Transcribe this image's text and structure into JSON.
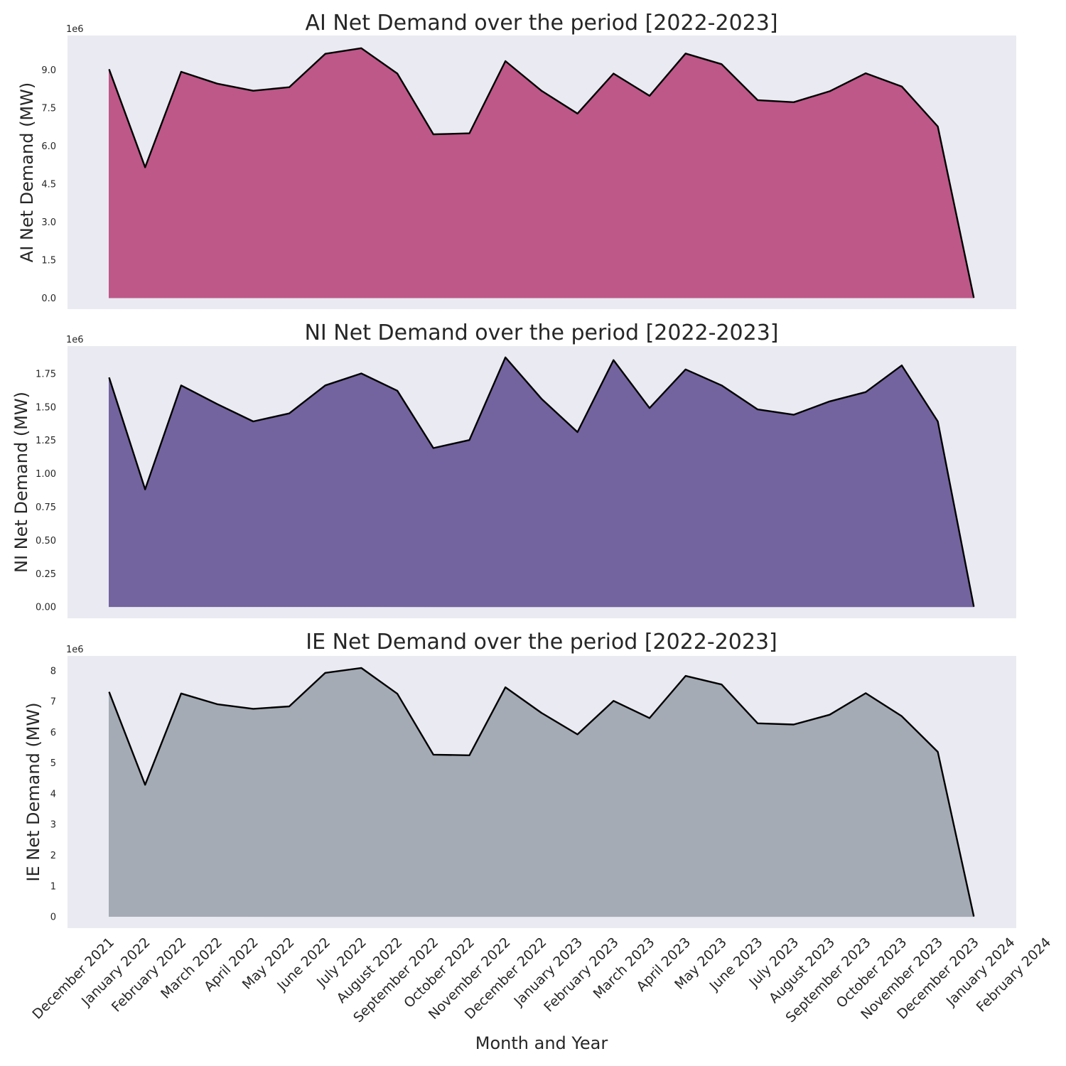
{
  "chart_data": [
    {
      "type": "area",
      "title": "AI Net Demand over the period [2022-2023]",
      "ylabel": "AI Net Demand (MW)",
      "multiplier": "1e6",
      "fill_color": "#bd5888",
      "line_color": "#000000",
      "yticks": [
        "0.0",
        "1.5",
        "3.0",
        "4.5",
        "6.0",
        "7.5",
        "9.0"
      ],
      "ylim": [
        -0.45,
        10.35
      ],
      "values": [
        9.02,
        5.15,
        8.92,
        8.45,
        8.17,
        8.31,
        9.63,
        9.85,
        8.85,
        6.45,
        6.49,
        9.34,
        8.17,
        7.27,
        8.85,
        7.97,
        9.64,
        9.22,
        7.8,
        7.72,
        8.15,
        8.86,
        8.34,
        6.76,
        0.0
      ]
    },
    {
      "type": "area",
      "title": "NI Net Demand over the period [2022-2023]",
      "ylabel": "NI Net Demand (MW)",
      "multiplier": "1e6",
      "fill_color": "#73649f",
      "line_color": "#000000",
      "yticks": [
        "0.00",
        "0.25",
        "0.50",
        "0.75",
        "1.00",
        "1.25",
        "1.50",
        "1.75"
      ],
      "ylim": [
        -0.087,
        1.955
      ],
      "values": [
        1.72,
        0.88,
        1.66,
        1.52,
        1.39,
        1.45,
        1.66,
        1.75,
        1.62,
        1.19,
        1.25,
        1.87,
        1.56,
        1.31,
        1.85,
        1.49,
        1.78,
        1.66,
        1.48,
        1.44,
        1.54,
        1.61,
        1.81,
        1.39,
        0.0
      ]
    },
    {
      "type": "area",
      "title": "IE Net Demand over the period [2022-2023]",
      "ylabel": "IE Net Demand (MW)",
      "multiplier": "1e6",
      "fill_color": "#a4abb5",
      "line_color": "#000000",
      "yticks": [
        "0",
        "1",
        "2",
        "3",
        "4",
        "5",
        "6",
        "7",
        "8"
      ],
      "ylim": [
        -0.38,
        8.47
      ],
      "values": [
        7.3,
        4.28,
        7.25,
        6.9,
        6.75,
        6.83,
        7.92,
        8.08,
        7.24,
        5.26,
        5.24,
        7.45,
        6.62,
        5.92,
        7.01,
        6.45,
        7.82,
        7.54,
        6.28,
        6.24,
        6.56,
        7.26,
        6.51,
        5.35,
        0.0
      ]
    }
  ],
  "x_axis": {
    "label": "Month and Year",
    "tick_labels": [
      "December 2021",
      "January 2022",
      "February 2022",
      "March 2022",
      "April 2022",
      "May 2022",
      "June 2022",
      "July 2022",
      "August 2022",
      "September 2022",
      "October 2022",
      "November 2022",
      "December 2022",
      "January 2023",
      "February 2023",
      "March 2023",
      "April 2023",
      "May 2023",
      "June 2023",
      "July 2023",
      "August 2023",
      "September 2023",
      "October 2023",
      "November 2023",
      "December 2023",
      "January 2024",
      "February 2024"
    ]
  },
  "colors": {
    "panel_background": "#eaeaf2"
  }
}
